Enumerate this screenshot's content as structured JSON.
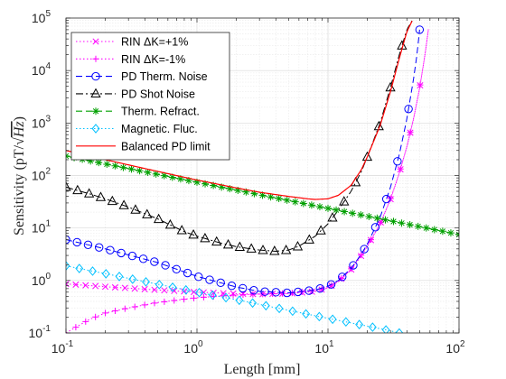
{
  "chart_data": {
    "type": "line",
    "xlabel": "Length [mm]",
    "ylabel_text": "Sensitivity (pT/",
    "ylabel_sqrt": "Hz",
    "ylabel_close": ")",
    "x_scale": "log",
    "y_scale": "log",
    "xlim": [
      0.1,
      100
    ],
    "ylim": [
      0.1,
      100000
    ],
    "grid": true,
    "minor_grid": true,
    "legend_position": "top-left",
    "xticks": [
      {
        "value": 0.1,
        "base": "10",
        "exp": "-1"
      },
      {
        "value": 1,
        "base": "10",
        "exp": "0"
      },
      {
        "value": 10,
        "base": "10",
        "exp": "1"
      },
      {
        "value": 100,
        "base": "10",
        "exp": "2"
      }
    ],
    "yticks": [
      {
        "value": 0.1,
        "base": "10",
        "exp": "-1"
      },
      {
        "value": 1,
        "base": "10",
        "exp": "0"
      },
      {
        "value": 10,
        "base": "10",
        "exp": "1"
      },
      {
        "value": 100,
        "base": "10",
        "exp": "2"
      },
      {
        "value": 1000,
        "base": "10",
        "exp": "3"
      },
      {
        "value": 10000,
        "base": "10",
        "exp": "4"
      },
      {
        "value": 100000,
        "base": "10",
        "exp": "5"
      }
    ],
    "series": [
      {
        "name": "RIN ΔK=+1%",
        "color": "#ff00ff",
        "dash": "dotted",
        "marker": "x",
        "x": [
          0.1,
          0.2,
          0.5,
          1,
          2,
          3,
          5,
          8,
          10,
          12,
          15,
          18,
          20,
          25,
          30,
          35,
          40,
          45,
          50,
          55,
          60
        ],
        "y": [
          0.86,
          0.76,
          0.66,
          0.6,
          0.56,
          0.55,
          0.56,
          0.62,
          0.72,
          0.95,
          1.6,
          3,
          4.5,
          12,
          35,
          110,
          350,
          1200,
          4500,
          20000,
          100000
        ]
      },
      {
        "name": "RIN ΔK=-1%",
        "color": "#ff00ff",
        "dash": "dotted",
        "marker": "plus",
        "x": [
          0.1,
          0.15,
          0.2,
          0.3,
          0.5,
          0.8,
          1,
          2,
          3,
          5,
          8,
          10,
          12,
          15,
          18,
          20,
          25,
          30,
          35,
          40,
          45,
          50,
          55,
          60
        ],
        "y": [
          0.1,
          0.18,
          0.24,
          0.3,
          0.38,
          0.44,
          0.47,
          0.53,
          0.55,
          0.57,
          0.64,
          0.74,
          0.97,
          1.65,
          3.1,
          4.6,
          12,
          36,
          112,
          355,
          1220,
          4600,
          20000,
          100000
        ]
      },
      {
        "name": "PD Therm. Noise",
        "color": "#0000ff",
        "dash": "dashed",
        "marker": "circle",
        "x": [
          0.1,
          0.2,
          0.5,
          1,
          2,
          3,
          5,
          8,
          10,
          12,
          15,
          18,
          20,
          25,
          30,
          35,
          40,
          45,
          48,
          50
        ],
        "y": [
          6,
          4,
          2.2,
          1.2,
          0.75,
          0.62,
          0.58,
          0.66,
          0.78,
          1,
          1.7,
          3.2,
          5,
          16,
          60,
          250,
          1200,
          7000,
          22000,
          60000
        ]
      },
      {
        "name": "PD Shot Noise",
        "color": "#000000",
        "dash": "dashdot",
        "marker": "triangle",
        "x": [
          0.1,
          0.15,
          0.2,
          0.3,
          0.5,
          0.8,
          1,
          1.5,
          2,
          3,
          4,
          5,
          6,
          8,
          10,
          12,
          15,
          18,
          20,
          25,
          30,
          35,
          40,
          45
        ],
        "y": [
          60,
          45,
          36,
          25,
          15,
          8.5,
          7,
          5.2,
          4.4,
          3.8,
          3.6,
          3.8,
          4.5,
          7,
          12,
          22,
          50,
          120,
          230,
          1000,
          4800,
          20000,
          60000,
          100000
        ]
      },
      {
        "name": "Therm. Refract.",
        "color": "#00a000",
        "dash": "dashed",
        "marker": "star",
        "x": [
          0.1,
          100
        ],
        "y": [
          235,
          7.5
        ]
      },
      {
        "name": "Magnetic. Fluc.",
        "color": "#00c0ff",
        "dash": "dotted",
        "marker": "diamond",
        "x": [
          0.1,
          0.2,
          0.5,
          1,
          2,
          5,
          10,
          20,
          30,
          35
        ],
        "y": [
          1.9,
          1.35,
          0.85,
          0.6,
          0.43,
          0.27,
          0.19,
          0.135,
          0.11,
          0.1
        ]
      },
      {
        "name": "Balanced PD limit",
        "color": "#ff0000",
        "dash": "solid",
        "marker": "none",
        "x": [
          0.1,
          0.2,
          0.5,
          1,
          2,
          3,
          5,
          7,
          8,
          10,
          12,
          15,
          18,
          20,
          25,
          30,
          35,
          40,
          45
        ],
        "y": [
          300,
          200,
          120,
          82,
          58,
          48,
          40,
          36,
          35,
          36,
          42,
          65,
          130,
          230,
          900,
          4000,
          17000,
          55000,
          100000
        ]
      }
    ]
  }
}
